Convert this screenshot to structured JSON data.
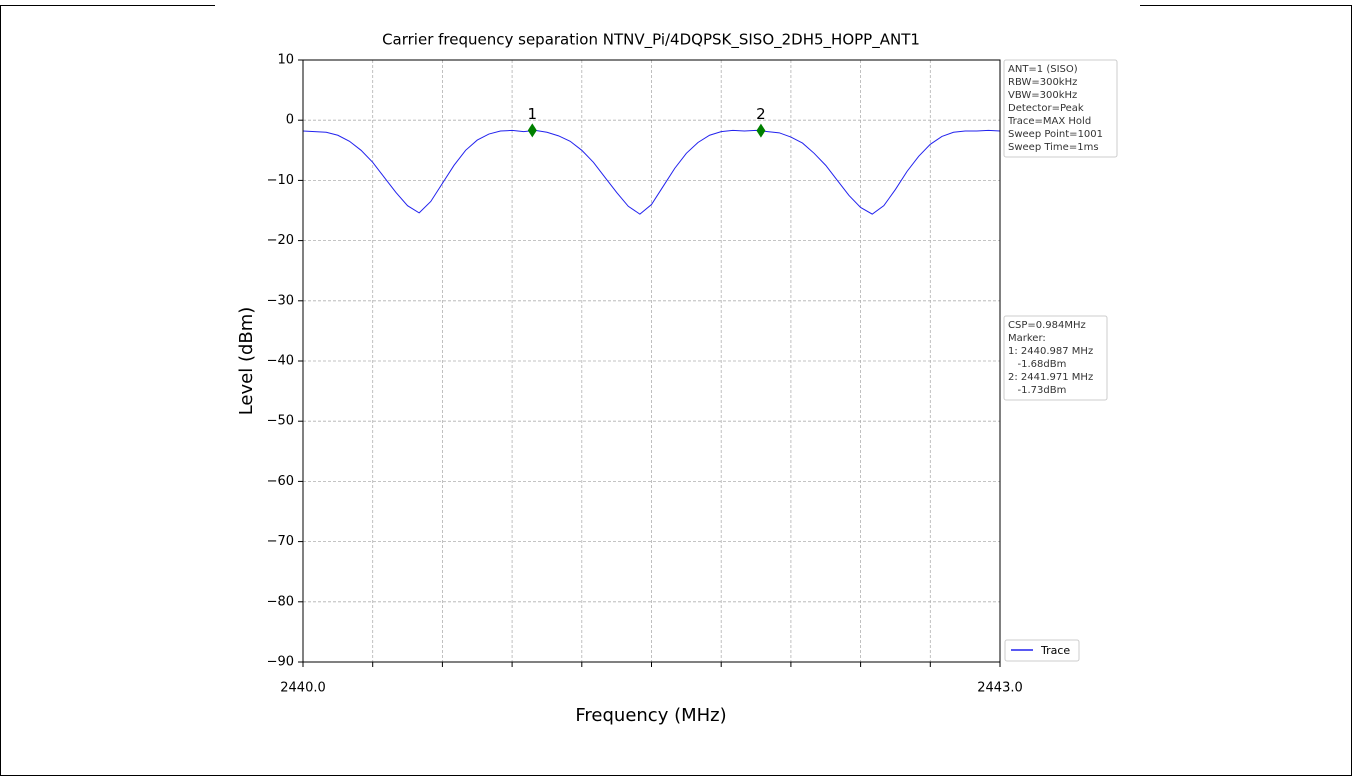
{
  "chart_data": {
    "type": "line",
    "title": "Carrier frequency separation NTNV_Pi/4DQPSK_SISO_2DH5_HOPP_ANT1",
    "xlabel": "Frequency (MHz)",
    "ylabel": "Level (dBm)",
    "xlim": [
      2440.0,
      2443.0
    ],
    "ylim": [
      -90,
      10
    ],
    "xticks": [
      {
        "value": 2440.0,
        "label": "2440.0"
      },
      {
        "value": 2443.0,
        "label": "2443.0"
      }
    ],
    "xminor_ticks": [
      2440.3,
      2440.6,
      2440.9,
      2441.2,
      2441.5,
      2441.8,
      2442.1,
      2442.4,
      2442.7
    ],
    "yticks": [
      10,
      0,
      {
        "value": -10,
        "label": "−10"
      },
      {
        "value": -20,
        "label": "−20"
      },
      {
        "value": -30,
        "label": "−30"
      },
      {
        "value": -40,
        "label": "−40"
      },
      {
        "value": -50,
        "label": "−50"
      },
      {
        "value": -60,
        "label": "−60"
      },
      {
        "value": -70,
        "label": "−70"
      },
      {
        "value": -80,
        "label": "−80"
      },
      {
        "value": -90,
        "label": "−90"
      }
    ],
    "grid": true,
    "x": [
      2440.0,
      2440.05,
      2440.1,
      2440.15,
      2440.2,
      2440.25,
      2440.3,
      2440.35,
      2440.4,
      2440.45,
      2440.5,
      2440.55,
      2440.6,
      2440.65,
      2440.7,
      2440.75,
      2440.8,
      2440.85,
      2440.9,
      2440.95,
      2441.0,
      2441.05,
      2441.1,
      2441.15,
      2441.2,
      2441.25,
      2441.3,
      2441.35,
      2441.4,
      2441.45,
      2441.5,
      2441.55,
      2441.6,
      2441.65,
      2441.7,
      2441.75,
      2441.8,
      2441.85,
      2441.9,
      2441.95,
      2442.0,
      2442.05,
      2442.1,
      2442.15,
      2442.2,
      2442.25,
      2442.3,
      2442.35,
      2442.4,
      2442.45,
      2442.5,
      2442.55,
      2442.6,
      2442.65,
      2442.7,
      2442.75,
      2442.8,
      2442.85,
      2442.9,
      2442.95,
      2443.0
    ],
    "series": [
      {
        "name": "Trace",
        "color": "#2222ee",
        "values": [
          -1.8,
          -1.9,
          -2.0,
          -2.5,
          -3.5,
          -5.0,
          -7.0,
          -9.5,
          -12.0,
          -14.2,
          -15.4,
          -13.5,
          -10.5,
          -7.5,
          -5.0,
          -3.3,
          -2.3,
          -1.8,
          -1.7,
          -1.9,
          -1.7,
          -2.0,
          -2.6,
          -3.5,
          -5.0,
          -7.0,
          -9.5,
          -12.0,
          -14.3,
          -15.6,
          -14.0,
          -11.0,
          -8.0,
          -5.5,
          -3.7,
          -2.5,
          -1.9,
          -1.7,
          -1.8,
          -1.7,
          -1.9,
          -2.1,
          -2.8,
          -3.8,
          -5.5,
          -7.5,
          -10.0,
          -12.5,
          -14.5,
          -15.6,
          -14.2,
          -11.5,
          -8.5,
          -6.0,
          -4.0,
          -2.7,
          -2.0,
          -1.8,
          -1.8,
          -1.7,
          -1.8
        ]
      }
    ],
    "legend": "lower right",
    "markers": [
      {
        "label": "1",
        "x": 2440.987,
        "y": -1.68,
        "color": "#008000"
      },
      {
        "label": "2",
        "x": 2441.971,
        "y": -1.73,
        "color": "#008000"
      }
    ],
    "settings_box": [
      "ANT=1 (SISO)",
      "RBW=300kHz",
      "VBW=300kHz",
      "Detector=Peak",
      "Trace=MAX Hold",
      "Sweep Point=1001",
      "Sweep Time=1ms"
    ],
    "marker_box": [
      "CSP=0.984MHz",
      "Marker:",
      "1: 2440.987 MHz",
      "   -1.68dBm",
      "2: 2441.971 MHz",
      "   -1.73dBm"
    ]
  }
}
